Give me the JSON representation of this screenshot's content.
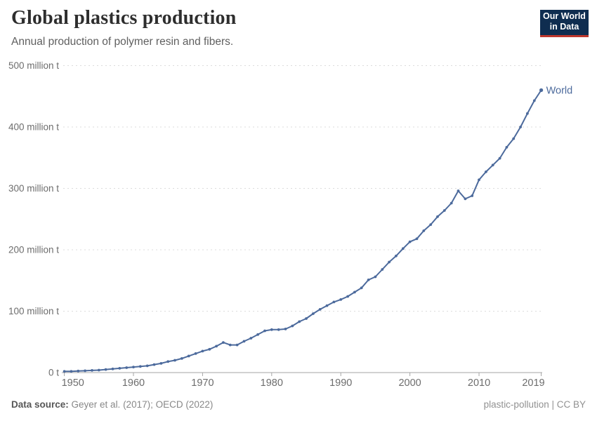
{
  "header": {
    "title": "Global plastics production",
    "subtitle": "Annual production of polymer resin and fibers."
  },
  "logo": {
    "line1": "Our World",
    "line2": "in Data",
    "bg_color": "#0f2d50",
    "bar_color": "#be372d"
  },
  "chart_data": {
    "type": "line",
    "title": "Global plastics production",
    "xlabel": "",
    "ylabel": "",
    "xlim": [
      1950,
      2019
    ],
    "ylim": [
      0,
      500
    ],
    "grid": "horizontal-dashed",
    "legend_position": "end-of-line-label",
    "x_ticks": [
      1950,
      1960,
      1970,
      1980,
      1990,
      2000,
      2010,
      2019
    ],
    "y_ticks": [
      {
        "value": 0,
        "label": "0 t"
      },
      {
        "value": 100,
        "label": "100 million t"
      },
      {
        "value": 200,
        "label": "200 million t"
      },
      {
        "value": 300,
        "label": "300 million t"
      },
      {
        "value": 400,
        "label": "400 million t"
      },
      {
        "value": 500,
        "label": "500 million t"
      }
    ],
    "series": [
      {
        "name": "World",
        "color": "#4C6A9C",
        "x": [
          1950,
          1951,
          1952,
          1953,
          1954,
          1955,
          1956,
          1957,
          1958,
          1959,
          1960,
          1961,
          1962,
          1963,
          1964,
          1965,
          1966,
          1967,
          1968,
          1969,
          1970,
          1971,
          1972,
          1973,
          1974,
          1975,
          1976,
          1977,
          1978,
          1979,
          1980,
          1981,
          1982,
          1983,
          1984,
          1985,
          1986,
          1987,
          1988,
          1989,
          1990,
          1991,
          1992,
          1993,
          1994,
          1995,
          1996,
          1997,
          1998,
          1999,
          2000,
          2001,
          2002,
          2003,
          2004,
          2005,
          2006,
          2007,
          2008,
          2009,
          2010,
          2011,
          2012,
          2013,
          2014,
          2015,
          2016,
          2017,
          2018,
          2019
        ],
        "values": [
          2,
          2,
          2.5,
          3,
          3.5,
          4,
          5,
          6,
          7,
          8,
          9,
          10,
          11,
          13,
          15,
          18,
          20,
          23,
          27,
          31,
          35,
          38,
          43,
          49,
          45,
          45,
          51,
          56,
          62,
          68,
          70,
          70,
          71,
          76,
          83,
          88,
          96,
          103,
          109,
          115,
          119,
          124,
          131,
          138,
          151,
          156,
          168,
          180,
          190,
          202,
          213,
          218,
          231,
          241,
          254,
          264,
          276,
          296,
          283,
          288,
          314,
          327,
          338,
          349,
          367,
          381,
          400,
          422,
          443,
          460
        ]
      }
    ]
  },
  "footer": {
    "source_label": "Data source:",
    "source_value": " Geyer et al. (2017); OECD (2022)",
    "note": "plastic-pollution | CC BY"
  },
  "colors": {
    "line": "#4C6A9C",
    "grid": "#dcdcdc",
    "axis": "#a6a6a6",
    "tick_label": "#6d6d6d"
  }
}
